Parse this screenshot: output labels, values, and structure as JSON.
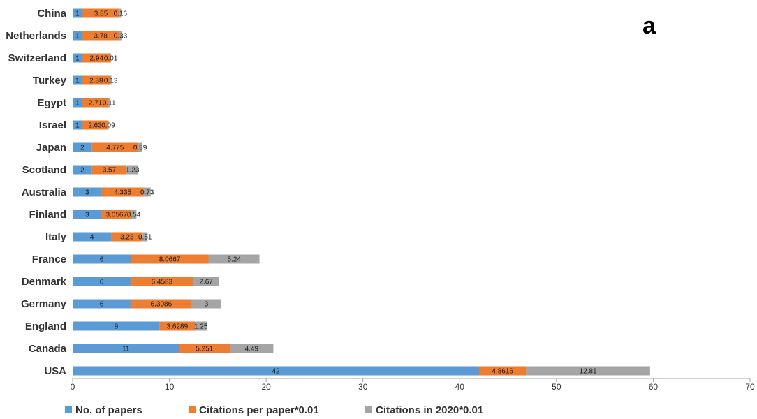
{
  "panel_label": "a",
  "chart_data": {
    "type": "bar",
    "orientation": "horizontal",
    "stacked": true,
    "title": "",
    "xlabel": "",
    "ylabel": "",
    "xlim": [
      0,
      70
    ],
    "x_ticks": [
      0,
      10,
      20,
      30,
      40,
      50,
      60,
      70
    ],
    "grid": false,
    "legend_position": "bottom",
    "categories": [
      "China",
      "Netherlands",
      "Switzerland",
      "Turkey",
      "Egypt",
      "Israel",
      "Japan",
      "Scotland",
      "Australia",
      "Finland",
      "Italy",
      "France",
      "Denmark",
      "Germany",
      "England",
      "Canada",
      "USA"
    ],
    "series": [
      {
        "name": "No. of papers",
        "color": "#5B9BD5",
        "values": [
          1,
          1,
          1,
          1,
          1,
          1,
          2,
          2,
          3,
          3,
          4,
          6,
          6,
          6,
          9,
          11,
          42
        ],
        "labels": [
          "1",
          "1",
          "1",
          "1",
          "1",
          "1",
          "2",
          "2",
          "3",
          "3",
          "4",
          "6",
          "6",
          "6",
          "9",
          "11",
          "42"
        ]
      },
      {
        "name": "Citations per paper*0.01",
        "color": "#ED7D31",
        "values": [
          3.85,
          3.78,
          2.94,
          2.88,
          2.71,
          2.63,
          4.775,
          3.57,
          4.335,
          3.0567,
          3.23,
          8.0667,
          6.4583,
          6.3086,
          3.6289,
          5.251,
          4.8616
        ],
        "labels": [
          "3.85",
          "3.78",
          "2.94",
          "2.88",
          "2.71",
          "2.63",
          "4.775",
          "3.57",
          "4.335",
          "3.0567",
          "3.23",
          "8.0667",
          "6.4583",
          "6.3086",
          "3.6289",
          "5.251",
          "4.8616"
        ]
      },
      {
        "name": "Citations in 2020*0.01",
        "color": "#A5A5A5",
        "values": [
          0.16,
          0.33,
          0.01,
          0.13,
          0.11,
          0.09,
          0.39,
          1.23,
          0.73,
          0.54,
          0.51,
          5.24,
          2.67,
          3,
          1.25,
          4.49,
          12.81
        ],
        "labels": [
          "0.16",
          "0.33",
          "0.01",
          "0.13",
          "0.11",
          "0.09",
          "0.39",
          "1.23",
          "0.73",
          "0.54",
          "0.51",
          "5.24",
          "2.67",
          "3",
          "1.25",
          "4.49",
          "12.81"
        ]
      }
    ]
  }
}
